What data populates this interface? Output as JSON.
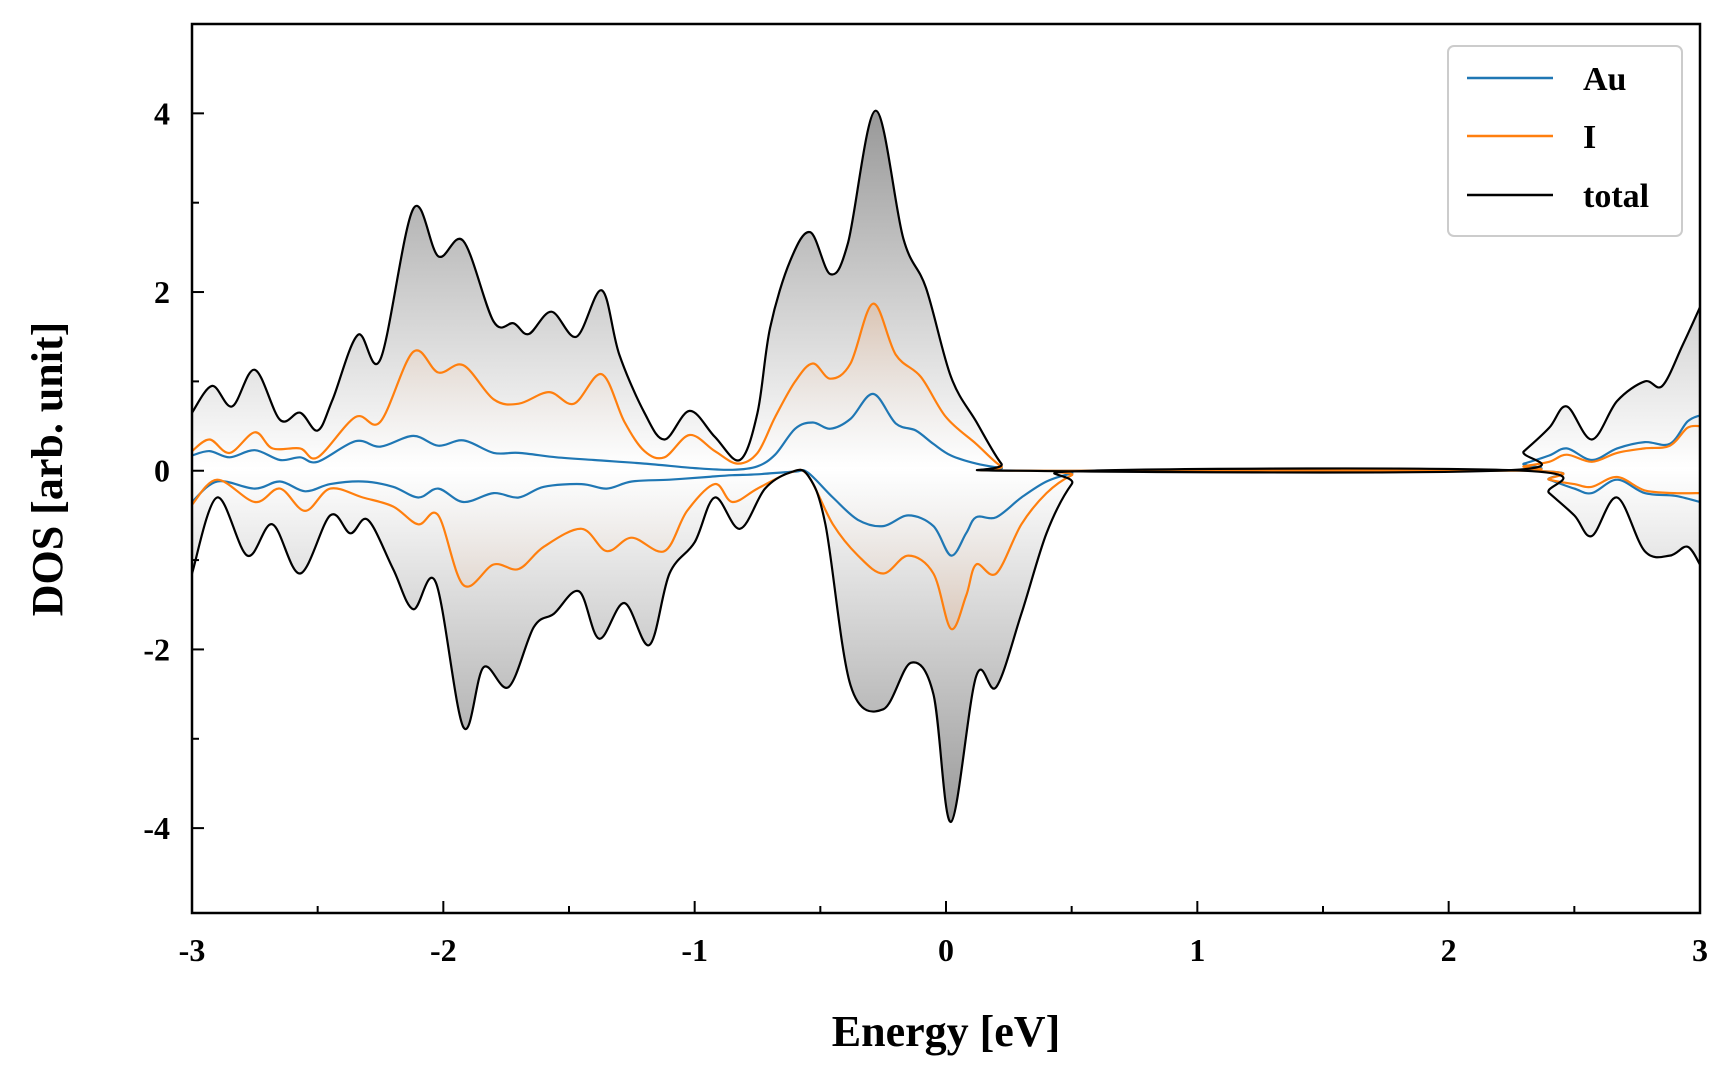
{
  "chart_data": {
    "type": "line",
    "title": "",
    "xlabel": "Energy [eV]",
    "ylabel": "DOS [arb. unit]",
    "xlim": [
      -3,
      3
    ],
    "ylim": [
      -4.95,
      5.0
    ],
    "xticks": [
      -3,
      -2,
      -1,
      0,
      1,
      2,
      3
    ],
    "yticks": [
      -4,
      -2,
      0,
      2,
      4
    ],
    "grid": false,
    "legend": {
      "position": "top-right"
    },
    "fill": "gray gradient under total, orange gradient under I",
    "colors": {
      "Au": "#1f77b4",
      "I": "#ff7f0e",
      "total": "#000000",
      "fill_total": "#808080",
      "fill_I": "#e09050"
    },
    "series": [
      {
        "name": "Au",
        "up": [
          [
            -3,
            0.17
          ],
          [
            -2.93,
            0.22
          ],
          [
            -2.85,
            0.15
          ],
          [
            -2.75,
            0.23
          ],
          [
            -2.65,
            0.12
          ],
          [
            -2.57,
            0.15
          ],
          [
            -2.5,
            0.1
          ],
          [
            -2.35,
            0.33
          ],
          [
            -2.25,
            0.27
          ],
          [
            -2.12,
            0.39
          ],
          [
            -2.02,
            0.28
          ],
          [
            -1.92,
            0.34
          ],
          [
            -1.8,
            0.2
          ],
          [
            -1.7,
            0.2
          ],
          [
            -1.55,
            0.15
          ],
          [
            -1.4,
            0.12
          ],
          [
            -1.2,
            0.08
          ],
          [
            -1.0,
            0.03
          ],
          [
            -0.85,
            0.01
          ],
          [
            -0.75,
            0.05
          ],
          [
            -0.68,
            0.18
          ],
          [
            -0.6,
            0.47
          ],
          [
            -0.53,
            0.54
          ],
          [
            -0.46,
            0.47
          ],
          [
            -0.38,
            0.58
          ],
          [
            -0.29,
            0.86
          ],
          [
            -0.2,
            0.53
          ],
          [
            -0.12,
            0.45
          ],
          [
            -0.05,
            0.3
          ],
          [
            0.02,
            0.17
          ],
          [
            0.12,
            0.08
          ],
          [
            0.22,
            0.03
          ],
          [
            0.3,
            0.0
          ],
          [
            2.2,
            0.0
          ],
          [
            2.3,
            0.08
          ],
          [
            2.4,
            0.17
          ],
          [
            2.47,
            0.25
          ],
          [
            2.57,
            0.12
          ],
          [
            2.67,
            0.25
          ],
          [
            2.78,
            0.32
          ],
          [
            2.88,
            0.3
          ],
          [
            2.95,
            0.55
          ],
          [
            3.0,
            0.62
          ]
        ],
        "down": [
          [
            -3,
            -0.35
          ],
          [
            -2.9,
            -0.12
          ],
          [
            -2.75,
            -0.2
          ],
          [
            -2.65,
            -0.12
          ],
          [
            -2.55,
            -0.23
          ],
          [
            -2.45,
            -0.15
          ],
          [
            -2.32,
            -0.12
          ],
          [
            -2.2,
            -0.18
          ],
          [
            -2.1,
            -0.3
          ],
          [
            -2.02,
            -0.2
          ],
          [
            -1.92,
            -0.35
          ],
          [
            -1.8,
            -0.25
          ],
          [
            -1.7,
            -0.3
          ],
          [
            -1.6,
            -0.18
          ],
          [
            -1.45,
            -0.15
          ],
          [
            -1.35,
            -0.2
          ],
          [
            -1.25,
            -0.12
          ],
          [
            -1.1,
            -0.1
          ],
          [
            -0.95,
            -0.07
          ],
          [
            -0.85,
            -0.05
          ],
          [
            -0.75,
            -0.04
          ],
          [
            -0.6,
            -0.01
          ],
          [
            -0.55,
            -0.02
          ],
          [
            -0.45,
            -0.3
          ],
          [
            -0.35,
            -0.55
          ],
          [
            -0.25,
            -0.62
          ],
          [
            -0.15,
            -0.5
          ],
          [
            -0.05,
            -0.62
          ],
          [
            0.02,
            -0.95
          ],
          [
            0.08,
            -0.7
          ],
          [
            0.12,
            -0.52
          ],
          [
            0.2,
            -0.52
          ],
          [
            0.3,
            -0.3
          ],
          [
            0.4,
            -0.12
          ],
          [
            0.5,
            -0.03
          ],
          [
            0.58,
            0.0
          ],
          [
            2.3,
            0.0
          ],
          [
            2.4,
            -0.1
          ],
          [
            2.5,
            -0.2
          ],
          [
            2.57,
            -0.25
          ],
          [
            2.67,
            -0.1
          ],
          [
            2.78,
            -0.25
          ],
          [
            2.9,
            -0.28
          ],
          [
            3.0,
            -0.35
          ]
        ]
      },
      {
        "name": "I",
        "up": [
          [
            -3,
            0.22
          ],
          [
            -2.93,
            0.35
          ],
          [
            -2.85,
            0.2
          ],
          [
            -2.75,
            0.43
          ],
          [
            -2.68,
            0.25
          ],
          [
            -2.57,
            0.25
          ],
          [
            -2.5,
            0.15
          ],
          [
            -2.35,
            0.6
          ],
          [
            -2.25,
            0.55
          ],
          [
            -2.12,
            1.33
          ],
          [
            -2.02,
            1.1
          ],
          [
            -1.92,
            1.18
          ],
          [
            -1.8,
            0.8
          ],
          [
            -1.7,
            0.75
          ],
          [
            -1.58,
            0.88
          ],
          [
            -1.48,
            0.75
          ],
          [
            -1.37,
            1.08
          ],
          [
            -1.28,
            0.55
          ],
          [
            -1.2,
            0.22
          ],
          [
            -1.12,
            0.15
          ],
          [
            -1.02,
            0.4
          ],
          [
            -0.92,
            0.22
          ],
          [
            -0.83,
            0.08
          ],
          [
            -0.75,
            0.2
          ],
          [
            -0.68,
            0.6
          ],
          [
            -0.6,
            1.0
          ],
          [
            -0.53,
            1.2
          ],
          [
            -0.46,
            1.03
          ],
          [
            -0.38,
            1.2
          ],
          [
            -0.29,
            1.87
          ],
          [
            -0.2,
            1.3
          ],
          [
            -0.1,
            1.05
          ],
          [
            0.0,
            0.6
          ],
          [
            0.12,
            0.3
          ],
          [
            0.22,
            0.05
          ],
          [
            0.3,
            0.0
          ],
          [
            2.2,
            0.0
          ],
          [
            2.3,
            0.05
          ],
          [
            2.4,
            0.1
          ],
          [
            2.47,
            0.18
          ],
          [
            2.57,
            0.1
          ],
          [
            2.67,
            0.2
          ],
          [
            2.78,
            0.25
          ],
          [
            2.88,
            0.28
          ],
          [
            2.95,
            0.48
          ],
          [
            3.0,
            0.5
          ]
        ],
        "down": [
          [
            -3,
            -0.38
          ],
          [
            -2.9,
            -0.1
          ],
          [
            -2.75,
            -0.35
          ],
          [
            -2.65,
            -0.2
          ],
          [
            -2.55,
            -0.45
          ],
          [
            -2.45,
            -0.2
          ],
          [
            -2.32,
            -0.3
          ],
          [
            -2.2,
            -0.4
          ],
          [
            -2.1,
            -0.6
          ],
          [
            -2.02,
            -0.5
          ],
          [
            -1.92,
            -1.28
          ],
          [
            -1.8,
            -1.05
          ],
          [
            -1.7,
            -1.1
          ],
          [
            -1.6,
            -0.85
          ],
          [
            -1.45,
            -0.65
          ],
          [
            -1.35,
            -0.9
          ],
          [
            -1.25,
            -0.75
          ],
          [
            -1.12,
            -0.9
          ],
          [
            -1.03,
            -0.45
          ],
          [
            -0.92,
            -0.15
          ],
          [
            -0.85,
            -0.35
          ],
          [
            -0.75,
            -0.2
          ],
          [
            -0.62,
            -0.02
          ],
          [
            -0.55,
            -0.05
          ],
          [
            -0.45,
            -0.6
          ],
          [
            -0.35,
            -0.95
          ],
          [
            -0.25,
            -1.15
          ],
          [
            -0.15,
            -0.95
          ],
          [
            -0.05,
            -1.15
          ],
          [
            0.02,
            -1.77
          ],
          [
            0.08,
            -1.4
          ],
          [
            0.12,
            -1.05
          ],
          [
            0.2,
            -1.15
          ],
          [
            0.3,
            -0.6
          ],
          [
            0.4,
            -0.25
          ],
          [
            0.5,
            -0.05
          ],
          [
            0.58,
            0.0
          ],
          [
            2.3,
            0.0
          ],
          [
            2.4,
            -0.1
          ],
          [
            2.5,
            -0.15
          ],
          [
            2.57,
            -0.18
          ],
          [
            2.67,
            -0.07
          ],
          [
            2.78,
            -0.22
          ],
          [
            2.9,
            -0.25
          ],
          [
            3.0,
            -0.25
          ]
        ]
      },
      {
        "name": "total",
        "up": [
          [
            -3,
            0.65
          ],
          [
            -2.92,
            0.95
          ],
          [
            -2.84,
            0.72
          ],
          [
            -2.75,
            1.13
          ],
          [
            -2.65,
            0.57
          ],
          [
            -2.57,
            0.65
          ],
          [
            -2.5,
            0.45
          ],
          [
            -2.44,
            0.8
          ],
          [
            -2.34,
            1.52
          ],
          [
            -2.25,
            1.25
          ],
          [
            -2.12,
            2.93
          ],
          [
            -2.02,
            2.4
          ],
          [
            -1.92,
            2.57
          ],
          [
            -1.8,
            1.67
          ],
          [
            -1.72,
            1.65
          ],
          [
            -1.66,
            1.53
          ],
          [
            -1.57,
            1.78
          ],
          [
            -1.47,
            1.5
          ],
          [
            -1.37,
            2.02
          ],
          [
            -1.3,
            1.3
          ],
          [
            -1.2,
            0.65
          ],
          [
            -1.12,
            0.35
          ],
          [
            -1.02,
            0.67
          ],
          [
            -0.92,
            0.38
          ],
          [
            -0.82,
            0.12
          ],
          [
            -0.75,
            0.65
          ],
          [
            -0.7,
            1.6
          ],
          [
            -0.62,
            2.35
          ],
          [
            -0.54,
            2.67
          ],
          [
            -0.46,
            2.2
          ],
          [
            -0.39,
            2.55
          ],
          [
            -0.28,
            4.03
          ],
          [
            -0.17,
            2.6
          ],
          [
            -0.08,
            2.05
          ],
          [
            0.02,
            1.05
          ],
          [
            0.12,
            0.55
          ],
          [
            0.22,
            0.08
          ],
          [
            0.28,
            0.0
          ],
          [
            2.2,
            0.0
          ],
          [
            2.3,
            0.22
          ],
          [
            2.4,
            0.48
          ],
          [
            2.47,
            0.72
          ],
          [
            2.57,
            0.35
          ],
          [
            2.67,
            0.78
          ],
          [
            2.78,
            1.0
          ],
          [
            2.85,
            0.95
          ],
          [
            2.93,
            1.4
          ],
          [
            3.0,
            1.83
          ]
        ],
        "down": [
          [
            -3,
            -1.15
          ],
          [
            -2.9,
            -0.3
          ],
          [
            -2.78,
            -0.95
          ],
          [
            -2.68,
            -0.6
          ],
          [
            -2.57,
            -1.15
          ],
          [
            -2.45,
            -0.5
          ],
          [
            -2.37,
            -0.7
          ],
          [
            -2.3,
            -0.55
          ],
          [
            -2.2,
            -1.1
          ],
          [
            -2.12,
            -1.55
          ],
          [
            -2.03,
            -1.25
          ],
          [
            -1.92,
            -2.87
          ],
          [
            -1.84,
            -2.2
          ],
          [
            -1.74,
            -2.42
          ],
          [
            -1.64,
            -1.75
          ],
          [
            -1.56,
            -1.6
          ],
          [
            -1.46,
            -1.35
          ],
          [
            -1.38,
            -1.88
          ],
          [
            -1.28,
            -1.48
          ],
          [
            -1.18,
            -1.95
          ],
          [
            -1.1,
            -1.15
          ],
          [
            -1.0,
            -0.8
          ],
          [
            -0.92,
            -0.3
          ],
          [
            -0.82,
            -0.65
          ],
          [
            -0.72,
            -0.2
          ],
          [
            -0.62,
            -0.02
          ],
          [
            -0.55,
            -0.05
          ],
          [
            -0.48,
            -0.6
          ],
          [
            -0.38,
            -2.4
          ],
          [
            -0.25,
            -2.67
          ],
          [
            -0.14,
            -2.15
          ],
          [
            -0.05,
            -2.5
          ],
          [
            0.02,
            -3.93
          ],
          [
            0.12,
            -2.3
          ],
          [
            0.2,
            -2.42
          ],
          [
            0.3,
            -1.6
          ],
          [
            0.4,
            -0.7
          ],
          [
            0.5,
            -0.15
          ],
          [
            0.58,
            0.0
          ],
          [
            2.3,
            0.0
          ],
          [
            2.4,
            -0.25
          ],
          [
            2.5,
            -0.5
          ],
          [
            2.57,
            -0.73
          ],
          [
            2.67,
            -0.3
          ],
          [
            2.78,
            -0.9
          ],
          [
            2.88,
            -0.95
          ],
          [
            2.95,
            -0.85
          ],
          [
            3.0,
            -1.05
          ]
        ]
      }
    ]
  }
}
